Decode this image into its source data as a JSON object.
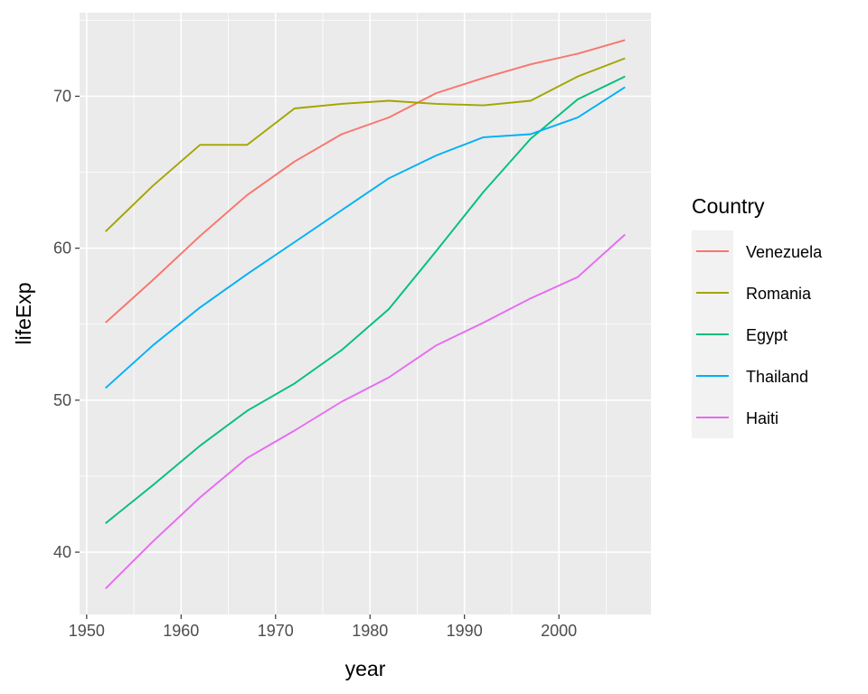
{
  "chart_data": {
    "type": "line",
    "title": "",
    "xlabel": "year",
    "ylabel": "lifeExp",
    "xlim": [
      1949.25,
      2009.75
    ],
    "ylim": [
      35.9,
      75.5
    ],
    "x_ticks": [
      1950,
      1960,
      1970,
      1980,
      1990,
      2000
    ],
    "y_ticks": [
      40,
      50,
      60,
      70
    ],
    "grid": true,
    "legend": {
      "title": "Country",
      "placement": "right"
    },
    "x": [
      1952,
      1957,
      1962,
      1967,
      1972,
      1977,
      1982,
      1987,
      1992,
      1997,
      2002,
      2007
    ],
    "series": [
      {
        "name": "Venezuela",
        "color": "#F8766D",
        "values": [
          55.1,
          57.9,
          60.8,
          63.5,
          65.7,
          67.5,
          68.6,
          70.2,
          71.2,
          72.1,
          72.8,
          73.7
        ]
      },
      {
        "name": "Romania",
        "color": "#A3A500",
        "values": [
          61.1,
          64.1,
          66.8,
          66.8,
          69.2,
          69.5,
          69.7,
          69.5,
          69.4,
          69.7,
          71.3,
          72.5
        ]
      },
      {
        "name": "Egypt",
        "color": "#00BF7D",
        "values": [
          41.9,
          44.4,
          47.0,
          49.3,
          51.1,
          53.3,
          56.0,
          59.8,
          63.7,
          67.2,
          69.8,
          71.3
        ]
      },
      {
        "name": "Thailand",
        "color": "#00B0F6",
        "values": [
          50.8,
          53.6,
          56.1,
          58.3,
          60.4,
          62.5,
          64.6,
          66.1,
          67.3,
          67.5,
          68.6,
          70.6
        ]
      },
      {
        "name": "Haiti",
        "color": "#E76BF3",
        "values": [
          37.6,
          40.7,
          43.6,
          46.2,
          48.0,
          49.9,
          51.5,
          53.6,
          55.1,
          56.7,
          58.1,
          60.9
        ]
      }
    ]
  }
}
